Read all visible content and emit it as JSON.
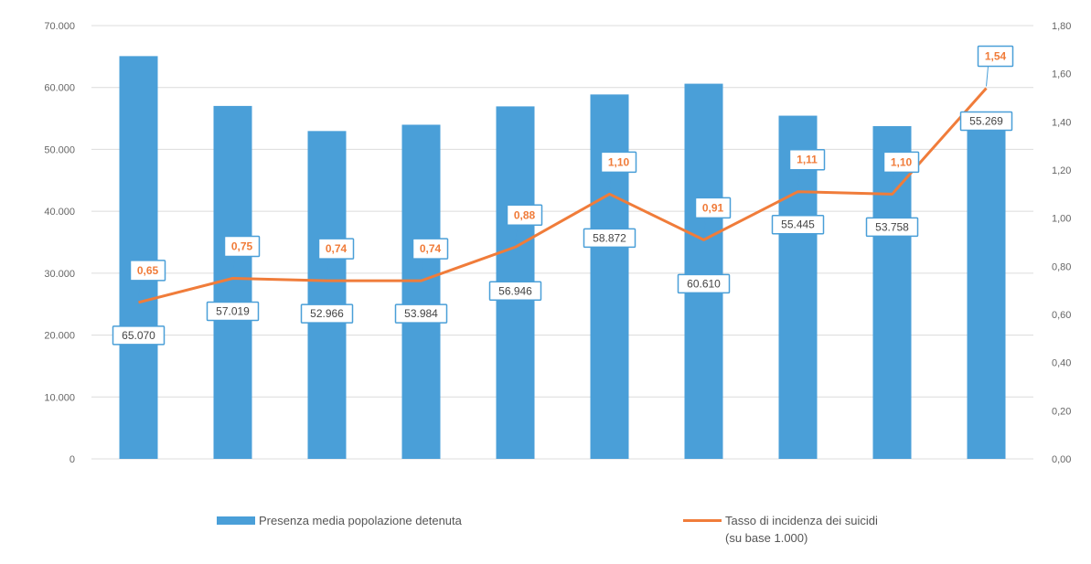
{
  "chart_data": {
    "type": "bar",
    "categories": [
      "",
      "",
      "",
      "",
      "",
      "",
      "",
      "",
      "",
      ""
    ],
    "series": [
      {
        "name": "Presenza media popolazione detenuta",
        "type": "bar",
        "axis": "left",
        "values": [
          65070,
          57019,
          52966,
          53984,
          56946,
          58872,
          60610,
          55445,
          53758,
          55269
        ],
        "labels": [
          "65.070",
          "57.019",
          "52.966",
          "53.984",
          "56.946",
          "58.872",
          "60.610",
          "55.445",
          "53.758",
          "55.269"
        ],
        "color": "#4a9fd8"
      },
      {
        "name": "Tasso di incidenza dei suicidi (su base 1.000)",
        "type": "line",
        "axis": "right",
        "values": [
          0.65,
          0.75,
          0.74,
          0.74,
          0.88,
          1.1,
          0.91,
          1.11,
          1.1,
          1.54
        ],
        "labels": [
          "0,65",
          "0,75",
          "0,74",
          "0,74",
          "0,88",
          "1,10",
          "0,91",
          "1,11",
          "1,10",
          "1,54"
        ],
        "color": "#f07c3a"
      }
    ],
    "y_left": {
      "ylim": [
        0,
        70000
      ],
      "ticks": [
        "0",
        "10.000",
        "20.000",
        "30.000",
        "40.000",
        "50.000",
        "60.000",
        "70.000"
      ]
    },
    "y_right": {
      "ylim": [
        0,
        1.8
      ],
      "ticks": [
        "0,00",
        "0,20",
        "0,40",
        "0,60",
        "0,80",
        "1,00",
        "1,20",
        "1,40",
        "1,60",
        "1,80"
      ]
    },
    "grid": true,
    "legend": {
      "position": "bottom",
      "bar_label": "Presenza media popolazione detenuta",
      "line_label_1": "Tasso di incidenza dei suicidi",
      "line_label_2": "(su base 1.000)"
    }
  }
}
